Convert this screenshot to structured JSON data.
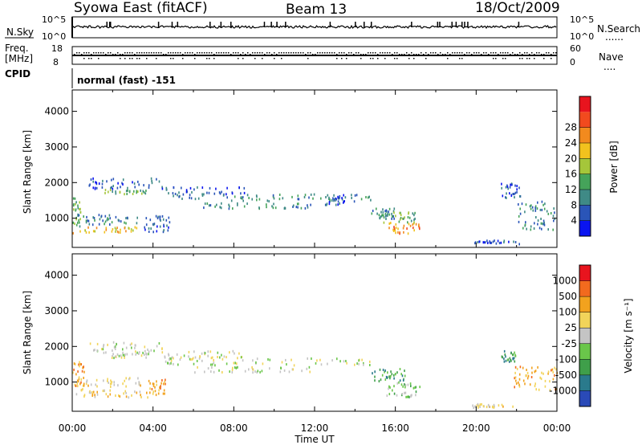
{
  "header": {
    "station": "Syowa East (fitACF)",
    "beam": "Beam 13",
    "date": "18/Oct/2009"
  },
  "strips": {
    "nsky_label": "N.Sky",
    "nsearch_label": "N.Search",
    "nsearch_style": "......",
    "nsky_scale_top": "10^5",
    "nsky_scale_bottom": "10^0",
    "freq_label_1": "Freq.",
    "freq_label_2": "[MHz]",
    "freq_scale_top": "18",
    "freq_scale_bottom": "8",
    "nave_label": "Nave",
    "nave_style": "....",
    "nave_scale_top": "60",
    "nave_scale_bottom": "0",
    "cpid_label": "CPID",
    "cpid_value": "normal (fast) -151"
  },
  "chart_data": [
    {
      "type": "heatmap",
      "panel": "power",
      "ylabel": "Slant Range [km]",
      "xlabel": "",
      "y_ticks": [
        1000,
        2000,
        3000,
        4000
      ],
      "ylim": [
        180,
        4600
      ],
      "xlim_hours": [
        0,
        24
      ],
      "colorbar": {
        "label": "Power [dB]",
        "ticks": [
          "4",
          "8",
          "12",
          "16",
          "20",
          "24",
          "28"
        ],
        "colors": [
          "#0a14f0",
          "#2a55b8",
          "#3f8a86",
          "#45a35a",
          "#a5c63a",
          "#f2c21e",
          "#f28a1e",
          "#f24a1e",
          "#e8141e"
        ]
      },
      "regions": [
        {
          "x": [
            0.0,
            0.4
          ],
          "y": [
            800,
            1600
          ],
          "level": 3
        },
        {
          "x": [
            0.0,
            3.2
          ],
          "y": [
            600,
            780
          ],
          "level": 5
        },
        {
          "x": [
            0.2,
            3.2
          ],
          "y": [
            850,
            1150
          ],
          "level": 2
        },
        {
          "x": [
            0.8,
            4.6
          ],
          "y": [
            1850,
            2150
          ],
          "level": 1
        },
        {
          "x": [
            1.5,
            3.8
          ],
          "y": [
            1700,
            1830
          ],
          "level": 3
        },
        {
          "x": [
            3.5,
            4.8
          ],
          "y": [
            600,
            1100
          ],
          "level": 1
        },
        {
          "x": [
            4.5,
            14.8
          ],
          "y": [
            1500,
            1700
          ],
          "level": 2
        },
        {
          "x": [
            4.5,
            8.5
          ],
          "y": [
            1700,
            1900
          ],
          "level": 1
        },
        {
          "x": [
            6.0,
            12.0
          ],
          "y": [
            1300,
            1450
          ],
          "level": 2
        },
        {
          "x": [
            12.5,
            13.5
          ],
          "y": [
            1400,
            1700
          ],
          "level": 1
        },
        {
          "x": [
            14.8,
            16.0
          ],
          "y": [
            1000,
            1300
          ],
          "level": 2
        },
        {
          "x": [
            15.5,
            17.2
          ],
          "y": [
            600,
            900
          ],
          "level": 6
        },
        {
          "x": [
            15.3,
            17.0
          ],
          "y": [
            900,
            1200
          ],
          "level": 3
        },
        {
          "x": [
            19.8,
            22.5
          ],
          "y": [
            300,
            400
          ],
          "level": 1
        },
        {
          "x": [
            21.2,
            22.2
          ],
          "y": [
            1600,
            2000
          ],
          "level": 1
        },
        {
          "x": [
            22.0,
            24.0
          ],
          "y": [
            700,
            1500
          ],
          "level": 2
        }
      ]
    },
    {
      "type": "heatmap",
      "panel": "velocity",
      "ylabel": "Slant Range [km]",
      "xlabel": "Time UT",
      "x_ticks": [
        "00:00",
        "04:00",
        "08:00",
        "12:00",
        "16:00",
        "20:00",
        "00:00"
      ],
      "y_ticks": [
        1000,
        2000,
        3000,
        4000
      ],
      "ylim": [
        180,
        4600
      ],
      "xlim_hours": [
        0,
        24
      ],
      "colorbar": {
        "label": "Velocity [m s⁻¹]",
        "ticks": [
          "1000",
          "500",
          "100",
          "25",
          "-25",
          "-100",
          "-500",
          "-1000"
        ],
        "colors": [
          "#2a4ab8",
          "#2a7a8c",
          "#3f9f4a",
          "#6ac64a",
          "#c4c4c4",
          "#f2d45a",
          "#f2a21e",
          "#f26a1e",
          "#e8141e"
        ]
      },
      "regions": [
        {
          "x": [
            0.0,
            0.6
          ],
          "y": [
            800,
            1600
          ],
          "level": 6
        },
        {
          "x": [
            0.0,
            3.4
          ],
          "y": [
            600,
            800
          ],
          "level": 5
        },
        {
          "x": [
            0.4,
            3.4
          ],
          "y": [
            900,
            1150
          ],
          "level": 5
        },
        {
          "x": [
            0.8,
            4.6
          ],
          "y": [
            1850,
            2150
          ],
          "level": 4
        },
        {
          "x": [
            1.5,
            3.8
          ],
          "y": [
            1700,
            1830
          ],
          "level": 4
        },
        {
          "x": [
            3.6,
            4.6
          ],
          "y": [
            600,
            1100
          ],
          "level": 6
        },
        {
          "x": [
            4.5,
            14.8
          ],
          "y": [
            1500,
            1700
          ],
          "level": 4
        },
        {
          "x": [
            4.5,
            8.5
          ],
          "y": [
            1700,
            1900
          ],
          "level": 4
        },
        {
          "x": [
            6.0,
            12.0
          ],
          "y": [
            1300,
            1450
          ],
          "level": 4
        },
        {
          "x": [
            14.8,
            16.5
          ],
          "y": [
            1000,
            1400
          ],
          "level": 2
        },
        {
          "x": [
            15.5,
            17.2
          ],
          "y": [
            600,
            1000
          ],
          "level": 3
        },
        {
          "x": [
            19.8,
            22.0
          ],
          "y": [
            300,
            420
          ],
          "level": 5
        },
        {
          "x": [
            21.2,
            22.0
          ],
          "y": [
            1600,
            1900
          ],
          "level": 2
        },
        {
          "x": [
            21.8,
            24.0
          ],
          "y": [
            800,
            1500
          ],
          "level": 6
        }
      ]
    }
  ]
}
